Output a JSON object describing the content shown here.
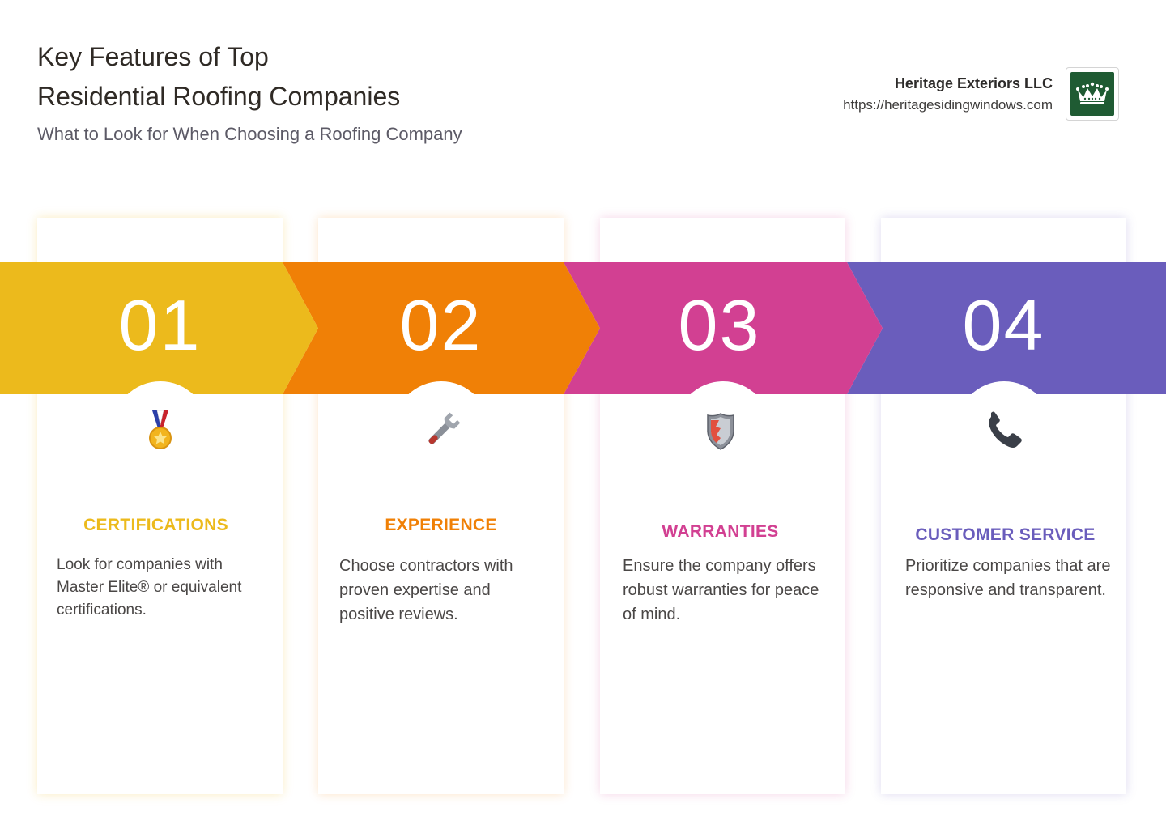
{
  "header": {
    "title_line1": "Key Features of Top",
    "title_line2": "Residential Roofing Companies",
    "subtitle": "What to Look for When Choosing a Roofing Company"
  },
  "brand": {
    "name": "Heritage Exteriors LLC",
    "url": "https://heritagesidingwindows.com",
    "logo_icon": "crown-logo-icon"
  },
  "colors": {
    "step1": "#ECBA1C",
    "step2": "#F08006",
    "step3": "#D24092",
    "step4": "#6A5DBC",
    "logo_bg": "#1F5B33"
  },
  "features": [
    {
      "number": "01",
      "icon": "medal-icon",
      "title": "CERTIFICATIONS",
      "description": "Look for companies with Master Elite® or equivalent certifications."
    },
    {
      "number": "02",
      "icon": "wrench-icon",
      "title": "EXPERIENCE",
      "description": "Choose contractors with proven expertise and positive reviews."
    },
    {
      "number": "03",
      "icon": "shield-icon",
      "title": "WARRANTIES",
      "description": "Ensure the company offers robust warranties for peace of mind."
    },
    {
      "number": "04",
      "icon": "telephone-icon",
      "title": "CUSTOMER SERVICE",
      "description": "Prioritize companies that are responsive and transparent."
    }
  ]
}
